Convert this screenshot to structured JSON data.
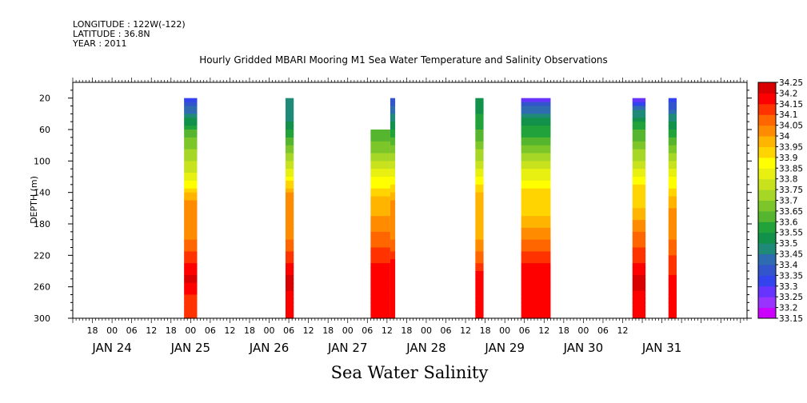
{
  "header": {
    "longitude": "LONGITUDE : 122W(-122)",
    "latitude": "LATITUDE : 36.8N",
    "year": "YEAR : 2011"
  },
  "title": "Hourly Gridded MBARI Mooring M1 Sea Water Temperature and Salinity Observations",
  "bottom_title": "Sea Water Salinity",
  "chart_data": {
    "type": "heatmap",
    "title": "Hourly Gridded MBARI Mooring M1 Sea Water Temperature and Salinity Observations",
    "xlabel": "",
    "ylabel": "DEPTH (m)",
    "y_range": [
      300,
      0
    ],
    "y_ticks": [
      20,
      60,
      100,
      140,
      180,
      220,
      260,
      300
    ],
    "x_range_hours": [
      0,
      206
    ],
    "x_hour_labels": [
      "18",
      "00",
      "06",
      "12",
      "18",
      "00",
      "06",
      "12",
      "18",
      "00",
      "06",
      "12",
      "18",
      "00",
      "06",
      "12",
      "18",
      "00",
      "06",
      "12",
      "18",
      "00",
      "06",
      "12",
      "18",
      "00",
      "06",
      "12"
    ],
    "x_day_labels": [
      "JAN 24",
      "JAN 25",
      "JAN 26",
      "JAN 27",
      "JAN 28",
      "JAN 29",
      "JAN 30",
      "JAN 31"
    ],
    "colorbar": {
      "levels": [
        "33.15",
        "33.2",
        "33.25",
        "33.3",
        "33.35",
        "33.4",
        "33.45",
        "33.5",
        "33.55",
        "33.6",
        "33.65",
        "33.7",
        "33.75",
        "33.8",
        "33.85",
        "33.9",
        "33.95",
        "34",
        "34.05",
        "34.1",
        "34.15",
        "34.2",
        "34.25"
      ],
      "colors": [
        "#cc00ff",
        "#9933ff",
        "#6633ff",
        "#3344ee",
        "#3355cc",
        "#2e6bb0",
        "#1f8a78",
        "#12914a",
        "#22a23a",
        "#55b52e",
        "#7dc62a",
        "#a6d626",
        "#c8e31e",
        "#e8f012",
        "#ffff00",
        "#ffd400",
        "#ffb400",
        "#ff8c00",
        "#ff6600",
        "#ff3300",
        "#ff0000",
        "#d80000",
        "#a00000"
      ]
    },
    "columns": [
      {
        "start_hour": 34,
        "end_hour": 38,
        "top_depth": 20,
        "profile": [
          [
            20,
            33.3
          ],
          [
            30,
            33.4
          ],
          [
            45,
            33.5
          ],
          [
            70,
            33.65
          ],
          [
            100,
            33.75
          ],
          [
            125,
            33.85
          ],
          [
            150,
            34.0
          ],
          [
            200,
            34.05
          ],
          [
            230,
            34.15
          ],
          [
            250,
            34.22
          ],
          [
            270,
            34.15
          ],
          [
            300,
            34.1
          ]
        ]
      },
      {
        "start_hour": 65,
        "end_hour": 67.5,
        "top_depth": 20,
        "profile": [
          [
            20,
            33.45
          ],
          [
            50,
            33.5
          ],
          [
            80,
            33.65
          ],
          [
            110,
            33.8
          ],
          [
            140,
            34.0
          ],
          [
            200,
            34.05
          ],
          [
            230,
            34.15
          ],
          [
            250,
            34.22
          ],
          [
            300,
            34.15
          ]
        ]
      },
      {
        "start_hour": 91,
        "end_hour": 97,
        "top_depth": 60,
        "profile": [
          [
            60,
            33.6
          ],
          [
            90,
            33.7
          ],
          [
            120,
            33.85
          ],
          [
            145,
            33.95
          ],
          [
            190,
            34.05
          ],
          [
            220,
            34.12
          ],
          [
            240,
            34.2
          ],
          [
            300,
            34.2
          ]
        ]
      },
      {
        "start_hour": 97,
        "end_hour": 98.5,
        "top_depth": 20,
        "profile": [
          [
            20,
            33.35
          ],
          [
            50,
            33.5
          ],
          [
            80,
            33.65
          ],
          [
            110,
            33.8
          ],
          [
            150,
            34.0
          ],
          [
            200,
            34.05
          ],
          [
            225,
            34.15
          ],
          [
            250,
            34.2
          ],
          [
            300,
            34.2
          ]
        ]
      },
      {
        "start_hour": 123,
        "end_hour": 125.5,
        "top_depth": 20,
        "profile": [
          [
            20,
            33.5
          ],
          [
            60,
            33.6
          ],
          [
            100,
            33.75
          ],
          [
            140,
            33.95
          ],
          [
            200,
            34.0
          ],
          [
            230,
            34.1
          ],
          [
            250,
            34.2
          ],
          [
            300,
            34.15
          ]
        ]
      },
      {
        "start_hour": 137,
        "end_hour": 146,
        "top_depth": 20,
        "profile": [
          [
            20,
            33.25
          ],
          [
            30,
            33.4
          ],
          [
            45,
            33.5
          ],
          [
            80,
            33.65
          ],
          [
            110,
            33.8
          ],
          [
            135,
            33.9
          ],
          [
            170,
            33.95
          ],
          [
            200,
            34.05
          ],
          [
            230,
            34.15
          ],
          [
            260,
            34.18
          ],
          [
            300,
            34.15
          ]
        ]
      },
      {
        "start_hour": 171,
        "end_hour": 175,
        "top_depth": 20,
        "profile": [
          [
            20,
            33.25
          ],
          [
            35,
            33.45
          ],
          [
            60,
            33.6
          ],
          [
            100,
            33.75
          ],
          [
            130,
            33.9
          ],
          [
            160,
            33.95
          ],
          [
            190,
            34.05
          ],
          [
            220,
            34.12
          ],
          [
            250,
            34.22
          ],
          [
            300,
            34.15
          ]
        ]
      },
      {
        "start_hour": 182,
        "end_hour": 184.5,
        "top_depth": 20,
        "profile": [
          [
            20,
            33.3
          ],
          [
            40,
            33.45
          ],
          [
            80,
            33.65
          ],
          [
            120,
            33.85
          ],
          [
            160,
            34.0
          ],
          [
            200,
            34.05
          ],
          [
            230,
            34.12
          ],
          [
            260,
            34.18
          ],
          [
            300,
            34.15
          ]
        ]
      }
    ]
  }
}
